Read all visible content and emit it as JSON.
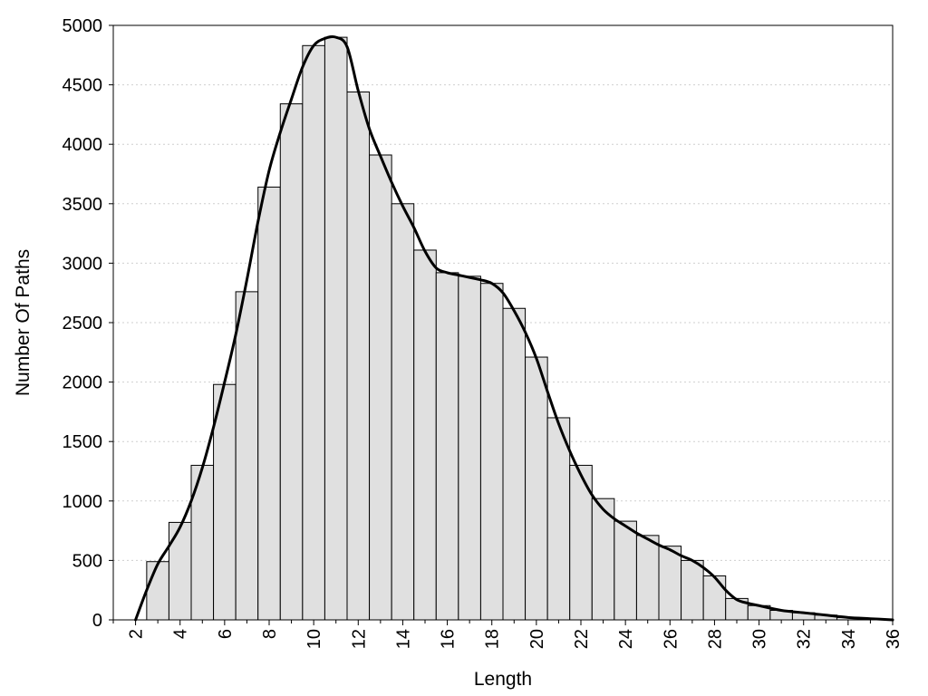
{
  "chart_data": {
    "type": "bar",
    "title": "",
    "xlabel": "Length",
    "ylabel": "Number Of Paths",
    "xlim": [
      1.0,
      36.0
    ],
    "ylim": [
      0,
      5000
    ],
    "grid": true,
    "legend": "none",
    "x_ticks": [
      2,
      4,
      6,
      8,
      10,
      12,
      14,
      16,
      18,
      20,
      22,
      24,
      26,
      28,
      30,
      32,
      34,
      36
    ],
    "y_ticks": [
      0,
      500,
      1000,
      1500,
      2000,
      2500,
      3000,
      3500,
      4000,
      4500,
      5000
    ],
    "bars": {
      "bin_width": 1,
      "x": [
        3,
        4,
        5,
        6,
        7,
        8,
        9,
        10,
        11,
        12,
        13,
        14,
        15,
        16,
        17,
        18,
        19,
        20,
        21,
        22,
        23,
        24,
        25,
        26,
        27,
        28,
        29,
        30,
        31,
        32,
        33,
        34,
        35
      ],
      "values": [
        490,
        820,
        1300,
        1980,
        2760,
        3640,
        4340,
        4830,
        4900,
        4440,
        3910,
        3500,
        3110,
        2920,
        2890,
        2830,
        2620,
        2210,
        1700,
        1300,
        1020,
        830,
        710,
        620,
        500,
        370,
        180,
        120,
        80,
        60,
        40,
        20,
        10
      ]
    },
    "curve": {
      "x": [
        2.0,
        2.5,
        3.0,
        3.5,
        4.0,
        4.5,
        5.0,
        5.5,
        6.0,
        6.5,
        7.0,
        7.5,
        8.0,
        8.5,
        9.0,
        9.5,
        10.0,
        10.5,
        11.0,
        11.5,
        12.0,
        12.5,
        13.0,
        13.5,
        14.0,
        14.5,
        15.0,
        15.5,
        16.0,
        16.5,
        17.0,
        17.5,
        18.0,
        18.5,
        19.0,
        19.5,
        20.0,
        20.5,
        21.0,
        21.5,
        22.0,
        22.5,
        23.0,
        23.5,
        24.0,
        24.5,
        25.0,
        25.5,
        26.0,
        26.5,
        27.0,
        27.5,
        28.0,
        28.5,
        29.0,
        29.5,
        30.0,
        31.0,
        32.0,
        33.0,
        34.0,
        35.0,
        36.0
      ],
      "y": [
        0,
        250,
        470,
        620,
        780,
        1000,
        1280,
        1620,
        2000,
        2400,
        2860,
        3350,
        3780,
        4100,
        4380,
        4650,
        4830,
        4890,
        4900,
        4820,
        4450,
        4130,
        3900,
        3680,
        3480,
        3300,
        3100,
        2960,
        2920,
        2900,
        2880,
        2860,
        2830,
        2750,
        2600,
        2420,
        2200,
        1920,
        1650,
        1420,
        1220,
        1050,
        930,
        850,
        790,
        730,
        680,
        630,
        590,
        540,
        500,
        440,
        360,
        250,
        170,
        140,
        120,
        80,
        60,
        40,
        20,
        10,
        0
      ]
    }
  }
}
